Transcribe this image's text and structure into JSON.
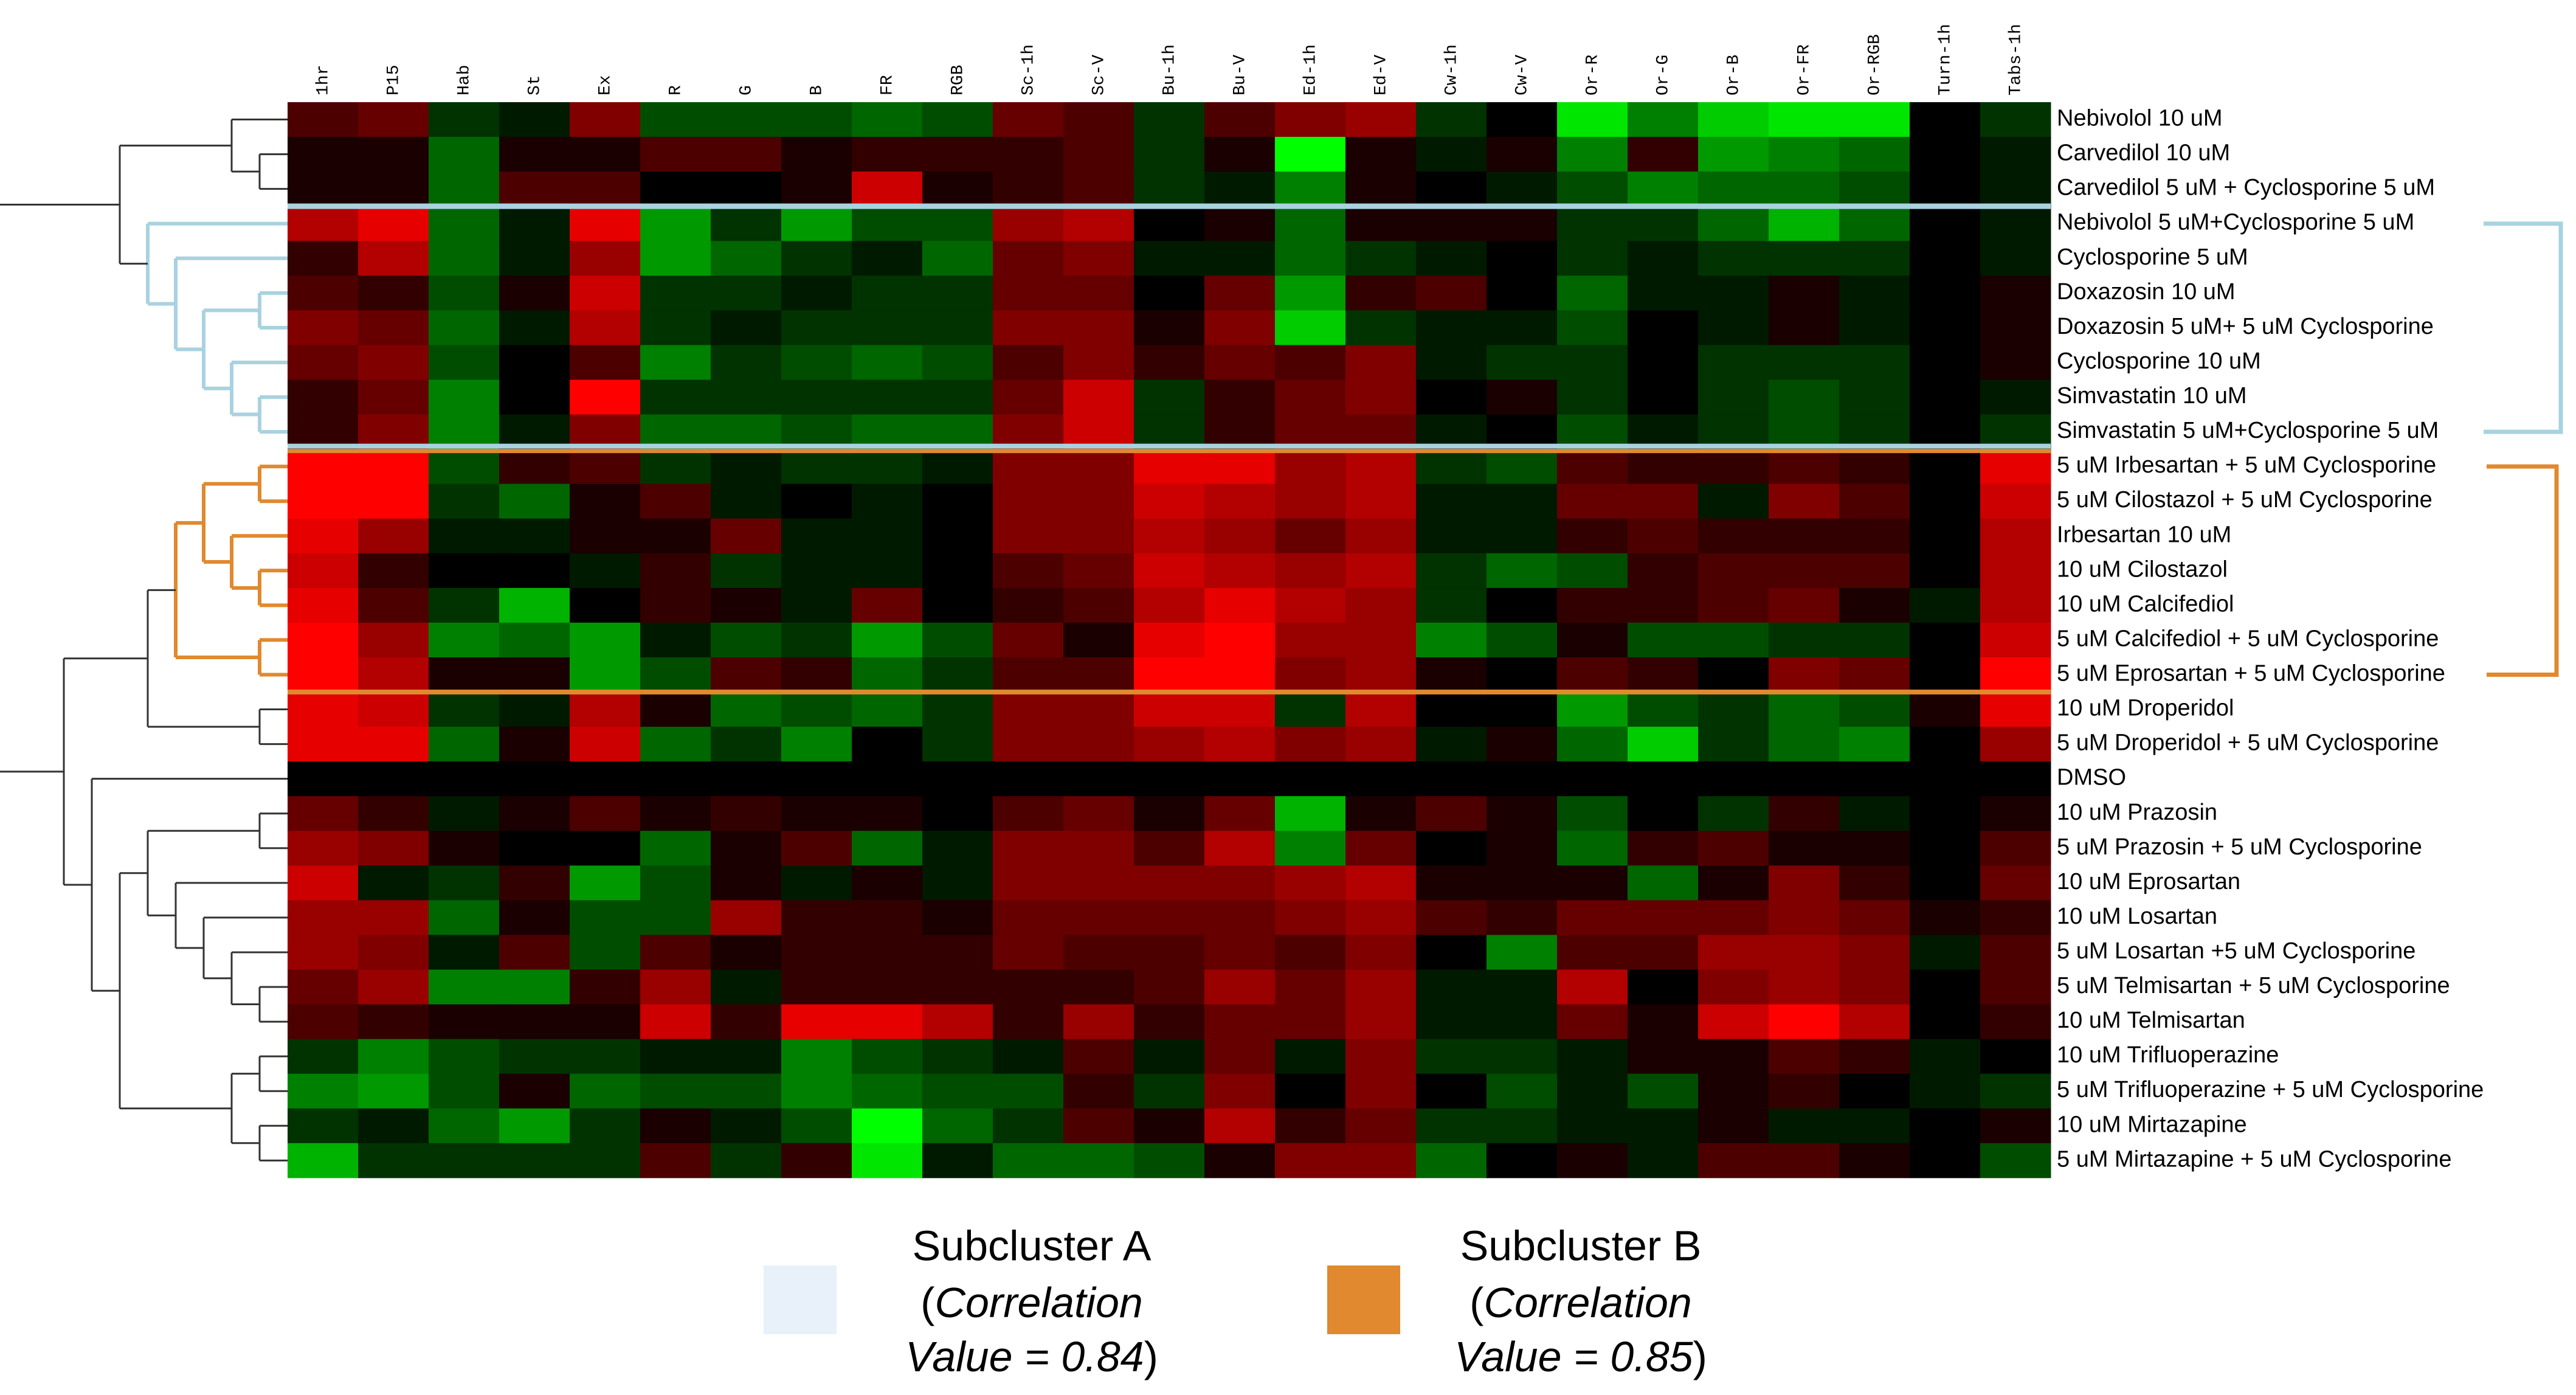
{
  "chart_data": {
    "type": "heatmap",
    "columns": [
      "1hr",
      "P15",
      "Hab",
      "St",
      "Ex",
      "R",
      "G",
      "B",
      "FR",
      "RGB",
      "Sc-1h",
      "Sc-V",
      "Bu-1h",
      "Bu-V",
      "Ed-1h",
      "Ed-V",
      "Cw-1h",
      "Cw-V",
      "Or-R",
      "Or-G",
      "Or-B",
      "Or-FR",
      "Or-RGB",
      "Turn-1h",
      "Tabs-1h"
    ],
    "rows": [
      "Nebivolol 10 uM",
      "Carvedilol 10 uM",
      "Carvedilol 5 uM + Cyclosporine 5 uM",
      "Nebivolol 5 uM+Cyclosporine 5 uM",
      "Cyclosporine 5 uM",
      "Doxazosin 10 uM",
      "Doxazosin 5 uM+ 5 uM Cyclosporine",
      "Cyclosporine 10 uM",
      "Simvastatin 10 uM",
      "Simvastatin 5 uM+Cyclosporine 5 uM",
      "5 uM Irbesartan + 5 uM Cyclosporine",
      "5 uM Cilostazol + 5 uM Cyclosporine",
      "Irbesartan 10 uM",
      "10 uM Cilostazol",
      "10 uM Calcifediol",
      "5 uM Calcifediol + 5 uM Cyclosporine",
      "5 uM Eprosartan + 5 uM Cyclosporine",
      "10 uM Droperidol",
      "5 uM Droperidol + 5 uM Cyclosporine",
      "DMSO",
      "10 uM Prazosin",
      "5 uM Prazosin + 5 uM Cyclosporine",
      "10 uM Eprosartan",
      "10 uM Losartan",
      "5 uM Losartan +5 uM Cyclosporine",
      "5 uM Telmisartan + 5 uM Cyclosporine",
      "10 uM Telmisartan",
      "10 uM Trifluoperazine",
      "5 uM Trifluoperazine + 5 uM Cyclosporine",
      "10 uM Mirtazapine",
      "5 uM Mirtazapine + 5 uM Cyclosporine"
    ],
    "values": [
      [
        0.3,
        0.4,
        -0.2,
        -0.1,
        0.5,
        -0.3,
        -0.3,
        -0.3,
        -0.4,
        -0.3,
        0.4,
        0.3,
        -0.2,
        0.3,
        0.5,
        0.6,
        -0.2,
        0,
        -0.9,
        -0.5,
        -0.8,
        -0.9,
        -0.9,
        0,
        -0.2
      ],
      [
        0.1,
        0.1,
        -0.4,
        0.1,
        0.1,
        0.3,
        0.3,
        0.1,
        0.2,
        0.2,
        0.2,
        0.3,
        -0.2,
        0.1,
        -1,
        0.1,
        -0.1,
        0.1,
        -0.5,
        0.2,
        -0.6,
        -0.5,
        -0.4,
        0,
        -0.1
      ],
      [
        0.1,
        0.1,
        -0.4,
        0.3,
        0.3,
        0,
        0,
        0.1,
        0.8,
        0.1,
        0.2,
        0.3,
        -0.2,
        -0.1,
        -0.5,
        0.1,
        0,
        -0.1,
        -0.3,
        -0.5,
        -0.4,
        -0.4,
        -0.3,
        0,
        -0.1
      ],
      [
        0.7,
        0.9,
        -0.4,
        -0.1,
        0.9,
        -0.6,
        -0.2,
        -0.6,
        -0.3,
        -0.3,
        0.6,
        0.7,
        0,
        0.1,
        -0.4,
        0.1,
        0.1,
        0.1,
        -0.2,
        -0.2,
        -0.4,
        -0.7,
        -0.4,
        0,
        -0.1
      ],
      [
        0.2,
        0.7,
        -0.4,
        -0.1,
        0.6,
        -0.6,
        -0.4,
        -0.2,
        -0.1,
        -0.4,
        0.4,
        0.5,
        -0.1,
        -0.1,
        -0.4,
        -0.2,
        -0.1,
        0,
        -0.2,
        -0.1,
        -0.2,
        -0.2,
        -0.2,
        0,
        -0.1
      ],
      [
        0.3,
        0.2,
        -0.3,
        0.1,
        0.8,
        -0.2,
        -0.2,
        -0.1,
        -0.2,
        -0.2,
        0.4,
        0.4,
        0,
        0.4,
        -0.6,
        0.2,
        0.3,
        0,
        -0.4,
        -0.1,
        -0.1,
        0.1,
        -0.1,
        0,
        0.1
      ],
      [
        0.5,
        0.4,
        -0.4,
        -0.1,
        0.7,
        -0.2,
        -0.1,
        -0.2,
        -0.2,
        -0.2,
        0.5,
        0.5,
        0.1,
        0.5,
        -0.8,
        -0.2,
        -0.1,
        -0.1,
        -0.3,
        0,
        -0.1,
        0.1,
        -0.1,
        0,
        0.1
      ],
      [
        0.4,
        0.5,
        -0.3,
        0,
        0.3,
        -0.5,
        -0.2,
        -0.3,
        -0.4,
        -0.3,
        0.3,
        0.5,
        0.2,
        0.4,
        0.3,
        0.5,
        -0.1,
        -0.2,
        -0.2,
        0,
        -0.2,
        -0.2,
        -0.2,
        0,
        0.1
      ],
      [
        0.2,
        0.4,
        -0.5,
        0,
        1,
        -0.2,
        -0.2,
        -0.2,
        -0.2,
        -0.2,
        0.4,
        0.8,
        -0.2,
        0.2,
        0.4,
        0.5,
        0,
        0.1,
        -0.2,
        0,
        -0.2,
        -0.3,
        -0.2,
        0,
        -0.1
      ],
      [
        0.2,
        0.5,
        -0.5,
        -0.1,
        0.5,
        -0.4,
        -0.4,
        -0.3,
        -0.4,
        -0.4,
        0.5,
        0.8,
        -0.2,
        0.2,
        0.4,
        0.4,
        -0.1,
        0,
        -0.3,
        -0.1,
        -0.2,
        -0.3,
        -0.2,
        0,
        -0.2
      ],
      [
        1,
        1,
        -0.3,
        0.2,
        0.3,
        -0.2,
        -0.1,
        -0.2,
        -0.2,
        -0.1,
        0.5,
        0.5,
        0.9,
        0.9,
        0.6,
        0.7,
        -0.2,
        -0.3,
        0.3,
        0.2,
        0.2,
        0.3,
        0.2,
        0,
        0.9
      ],
      [
        1,
        1,
        -0.2,
        -0.4,
        0.1,
        0.3,
        -0.1,
        0,
        -0.1,
        0,
        0.5,
        0.5,
        0.8,
        0.7,
        0.6,
        0.7,
        -0.1,
        -0.1,
        0.4,
        0.4,
        -0.1,
        0.5,
        0.3,
        0,
        0.8
      ],
      [
        0.9,
        0.6,
        -0.1,
        -0.1,
        0.1,
        0.1,
        0.4,
        -0.1,
        -0.1,
        0,
        0.5,
        0.5,
        0.7,
        0.6,
        0.4,
        0.6,
        -0.1,
        -0.1,
        0.2,
        0.3,
        0.2,
        0.2,
        0.2,
        0,
        0.7
      ],
      [
        0.8,
        0.2,
        0,
        0,
        -0.1,
        0.2,
        -0.2,
        -0.1,
        -0.1,
        0,
        0.3,
        0.4,
        0.8,
        0.7,
        0.6,
        0.7,
        -0.2,
        -0.4,
        -0.3,
        0.2,
        0.3,
        0.3,
        0.3,
        0,
        0.7
      ],
      [
        0.9,
        0.3,
        -0.2,
        -0.7,
        0,
        0.2,
        0.1,
        -0.1,
        0.4,
        0,
        0.2,
        0.3,
        0.7,
        0.9,
        0.7,
        0.6,
        -0.2,
        0,
        0.2,
        0.2,
        0.3,
        0.4,
        0.1,
        -0.1,
        0.7
      ],
      [
        1,
        0.6,
        -0.5,
        -0.4,
        -0.6,
        -0.1,
        -0.3,
        -0.2,
        -0.6,
        -0.3,
        0.4,
        0.1,
        0.9,
        1,
        0.6,
        0.6,
        -0.5,
        -0.3,
        0.1,
        -0.3,
        -0.3,
        -0.2,
        -0.2,
        0,
        0.8
      ],
      [
        1,
        0.7,
        0.1,
        0.1,
        -0.6,
        -0.3,
        0.3,
        0.2,
        -0.4,
        -0.2,
        0.3,
        0.3,
        1,
        1,
        0.5,
        0.6,
        0.1,
        0,
        0.3,
        0.2,
        0,
        0.5,
        0.4,
        0,
        1
      ],
      [
        0.9,
        0.8,
        -0.2,
        -0.1,
        0.7,
        0.1,
        -0.4,
        -0.3,
        -0.4,
        -0.2,
        0.5,
        0.5,
        0.8,
        0.8,
        -0.2,
        0.7,
        0,
        0,
        -0.6,
        -0.3,
        -0.2,
        -0.4,
        -0.3,
        0.1,
        0.9
      ],
      [
        0.9,
        0.9,
        -0.4,
        0.1,
        0.8,
        -0.4,
        -0.2,
        -0.5,
        0,
        -0.2,
        0.5,
        0.5,
        0.6,
        0.7,
        0.5,
        0.6,
        -0.1,
        0.1,
        -0.4,
        -0.8,
        -0.2,
        -0.4,
        -0.5,
        0,
        0.6
      ],
      [
        0,
        0,
        0,
        0,
        0,
        0,
        0,
        0,
        0,
        0,
        0,
        0,
        0,
        0,
        0,
        0,
        0,
        0,
        0,
        0,
        0,
        0,
        0,
        0,
        0
      ],
      [
        0.4,
        0.2,
        -0.1,
        0.1,
        0.3,
        0.1,
        0.2,
        0.1,
        0.1,
        0,
        0.3,
        0.4,
        0.1,
        0.4,
        -0.7,
        0.1,
        0.3,
        0.1,
        -0.3,
        0,
        -0.2,
        0.2,
        -0.1,
        0,
        0.1
      ],
      [
        0.6,
        0.5,
        0.1,
        0,
        0,
        -0.4,
        0.1,
        0.3,
        -0.4,
        -0.1,
        0.5,
        0.5,
        0.3,
        0.7,
        -0.5,
        0.4,
        0,
        0.1,
        -0.4,
        0.2,
        0.3,
        0.1,
        0.1,
        0,
        0.3
      ],
      [
        0.8,
        -0.1,
        -0.2,
        0.2,
        -0.6,
        -0.3,
        0.1,
        -0.1,
        0.1,
        -0.1,
        0.5,
        0.5,
        0.5,
        0.5,
        0.6,
        0.7,
        0.1,
        0.1,
        0.1,
        -0.4,
        0.1,
        0.5,
        0.2,
        0,
        0.4
      ],
      [
        0.6,
        0.6,
        -0.4,
        0.1,
        -0.3,
        -0.3,
        0.6,
        0.2,
        0.2,
        0.1,
        0.4,
        0.4,
        0.4,
        0.4,
        0.5,
        0.6,
        0.3,
        0.2,
        0.4,
        0.4,
        0.4,
        0.5,
        0.4,
        0.1,
        0.2
      ],
      [
        0.6,
        0.5,
        -0.1,
        0.3,
        -0.3,
        0.3,
        0.1,
        0.2,
        0.2,
        0.2,
        0.4,
        0.3,
        0.3,
        0.4,
        0.3,
        0.5,
        0,
        -0.5,
        0.3,
        0.3,
        0.6,
        0.6,
        0.5,
        -0.1,
        0.3
      ],
      [
        0.4,
        0.6,
        -0.5,
        -0.5,
        0.2,
        0.6,
        -0.1,
        0.2,
        0.2,
        0.2,
        0.2,
        0.2,
        0.3,
        0.6,
        0.4,
        0.6,
        -0.1,
        -0.1,
        0.7,
        0,
        0.5,
        0.6,
        0.5,
        0,
        0.3
      ],
      [
        0.3,
        0.2,
        0.1,
        0.1,
        0.1,
        0.8,
        0.2,
        0.9,
        0.9,
        0.7,
        0.2,
        0.6,
        0.2,
        0.4,
        0.4,
        0.6,
        -0.1,
        -0.1,
        0.4,
        0.1,
        0.8,
        1,
        0.7,
        0,
        0.2
      ],
      [
        -0.2,
        -0.5,
        -0.3,
        -0.2,
        -0.2,
        -0.1,
        -0.1,
        -0.5,
        -0.3,
        -0.2,
        -0.1,
        0.3,
        -0.1,
        0.4,
        -0.1,
        0.5,
        -0.2,
        -0.2,
        -0.1,
        0.1,
        0.1,
        0.3,
        0.2,
        -0.1,
        0
      ],
      [
        -0.5,
        -0.6,
        -0.3,
        0.1,
        -0.4,
        -0.3,
        -0.3,
        -0.5,
        -0.4,
        -0.3,
        -0.3,
        0.2,
        -0.2,
        0.5,
        0,
        0.5,
        0,
        -0.3,
        -0.1,
        -0.3,
        0.1,
        0.2,
        0,
        -0.1,
        -0.2
      ],
      [
        -0.2,
        -0.1,
        -0.4,
        -0.6,
        -0.2,
        0.1,
        -0.1,
        -0.3,
        -1,
        -0.4,
        -0.2,
        0.3,
        0.1,
        0.7,
        0.2,
        0.4,
        -0.2,
        -0.2,
        -0.1,
        -0.1,
        0.1,
        -0.1,
        -0.1,
        0,
        0.1
      ],
      [
        -0.7,
        -0.2,
        -0.2,
        -0.2,
        -0.2,
        0.3,
        -0.2,
        0.2,
        -0.9,
        -0.1,
        -0.4,
        -0.4,
        -0.3,
        0.1,
        0.5,
        0.5,
        -0.4,
        0,
        0.1,
        -0.1,
        0.3,
        0.3,
        0.1,
        0,
        -0.3
      ]
    ],
    "color_positive": "#ff0000",
    "color_negative": "#00ff00",
    "clusters": [
      {
        "name": "Subcluster A",
        "color": "#a9d2e0",
        "swatch": "#e8f1fa",
        "open": "(",
        "italic_1": "Correlation",
        "italic_2": "Value = 0.84",
        "close": ")"
      },
      {
        "name": "Subcluster B",
        "color": "#e0892f",
        "swatch": "#e0892f",
        "open": "(",
        "italic_1": "Correlation",
        "italic_2": "Value = 0.85",
        "close": ")"
      }
    ]
  }
}
